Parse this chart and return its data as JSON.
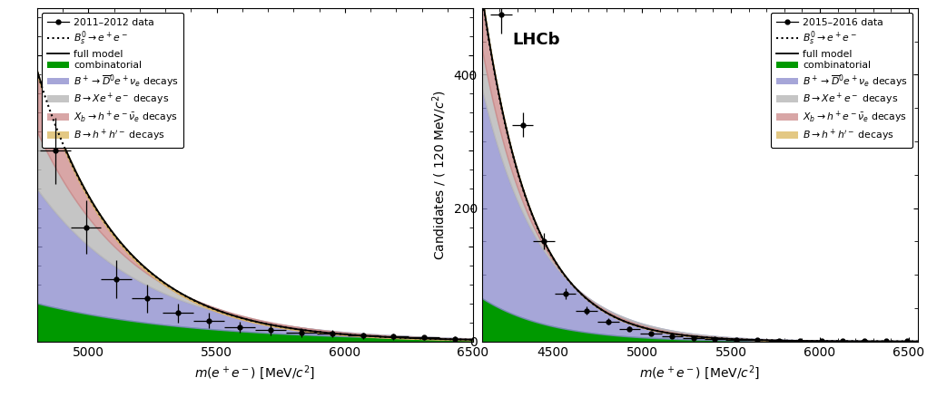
{
  "left_panel": {
    "xmin": 4800,
    "xmax": 6500,
    "ymin": 0,
    "ymax": 35,
    "xticks": [
      5000,
      5500,
      6000,
      6500
    ],
    "yticks": [
      0,
      10,
      20,
      30
    ],
    "year_label": "2011–2012 data",
    "colors": {
      "combinatorial": "#009900",
      "blue_decay": "#8888cc",
      "gray_decay": "#bbbbbb",
      "red_decay": "#cc8888",
      "yellow_decay": "#ddbb66"
    },
    "curve_params": {
      "xstart": 4800,
      "amp_red": 28,
      "decay_red": 320,
      "amp_gray": 22,
      "decay_gray": 380,
      "amp_blue": 16,
      "decay_blue": 430,
      "amp_green": 4,
      "decay_green": 600,
      "amp_yellow": 1.5,
      "decay_yellow": 700
    },
    "data_points_x": [
      4870,
      4990,
      5110,
      5230,
      5350,
      5470,
      5590,
      5710,
      5830,
      5950,
      6070,
      6190,
      6310,
      6430
    ],
    "data_points_y": [
      20,
      12,
      6.5,
      4.5,
      3.0,
      2.2,
      1.5,
      1.2,
      0.9,
      0.8,
      0.6,
      0.5,
      0.4,
      0.3
    ],
    "data_xerr": 60,
    "data_yerr": [
      3.5,
      2.8,
      2.0,
      1.5,
      1.0,
      0.8,
      0.6,
      0.55,
      0.45,
      0.4,
      0.35,
      0.3,
      0.25,
      0.2
    ]
  },
  "right_panel": {
    "xmin": 4100,
    "xmax": 6550,
    "ymin": 0,
    "ymax": 500,
    "xticks": [
      4500,
      5000,
      5500,
      6000,
      6500
    ],
    "yticks": [
      0,
      200,
      400
    ],
    "year_label": "2015–2016 data",
    "lhcb_label": "LHCb",
    "colors": {
      "combinatorial": "#009900",
      "blue_decay": "#8888cc",
      "gray_decay": "#bbbbbb",
      "red_decay": "#cc8888",
      "yellow_decay": "#ddbb66"
    },
    "curve_params": {
      "xstart": 4100,
      "amp_red": 520,
      "decay_red": 280,
      "amp_gray": 440,
      "decay_gray": 310,
      "amp_blue": 380,
      "decay_blue": 340,
      "amp_green": 65,
      "decay_green": 380,
      "amp_yellow": 8,
      "decay_yellow": 500
    },
    "data_points_x": [
      4210,
      4330,
      4450,
      4570,
      4690,
      4810,
      4930,
      5050,
      5170,
      5290,
      5410,
      5530,
      5650,
      5770,
      5890,
      6010,
      6130,
      6250,
      6370,
      6490
    ],
    "data_points_y": [
      490,
      325,
      150,
      72,
      46,
      30,
      19,
      12,
      8,
      5.5,
      3.5,
      2.5,
      1.8,
      1.3,
      1.0,
      0.8,
      0.6,
      0.5,
      0.4,
      0.3
    ],
    "data_xerr": 60,
    "data_yerr": [
      28,
      18,
      12,
      8,
      6,
      4.5,
      3.5,
      3.0,
      2.5,
      2.0,
      1.5,
      1.2,
      1.0,
      0.8,
      0.7,
      0.6,
      0.5,
      0.4,
      0.35,
      0.3
    ]
  }
}
